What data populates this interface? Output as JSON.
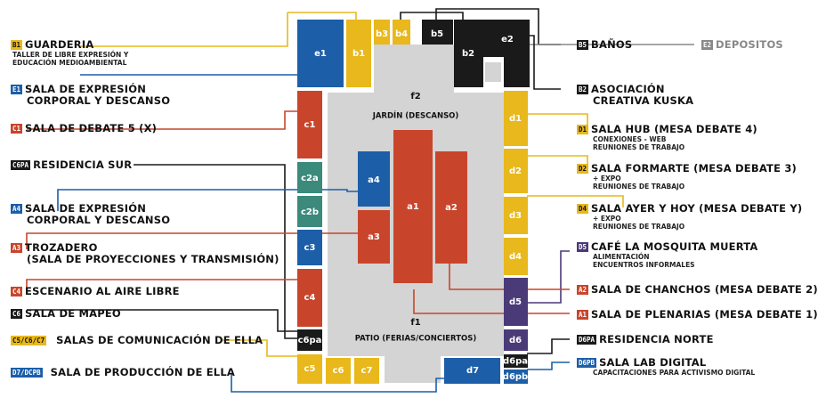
{
  "colors": {
    "yellow": "#e8b81c",
    "blue": "#1c5ea8",
    "red": "#c8452c",
    "teal": "#3b8a7c",
    "black": "#1a1a1a",
    "purple": "#4b3a78",
    "gray": "#d4d4d4",
    "muted": "#888888"
  },
  "zones": {
    "f2": {
      "code": "f2",
      "name": "JARDÍN (DESCANSO)"
    },
    "f1": {
      "code": "f1",
      "name": "PATIO (FERIAS/CONCIERTOS)"
    }
  },
  "rooms": {
    "e1": "e1",
    "b1": "b1",
    "b3": "b3",
    "b4": "b4",
    "b5": "b5",
    "e2": "e2",
    "b2": "b2",
    "c1": "c1",
    "c2a": "c2a",
    "c2b": "c2b",
    "c3": "c3",
    "c4": "c4",
    "c6pa": "c6pa",
    "c5": "c5",
    "c6": "c6",
    "c7": "c7",
    "a4": "a4",
    "a3": "a3",
    "a1": "a1",
    "a2": "a2",
    "d1": "d1",
    "d2": "d2",
    "d3": "d3",
    "d4": "d4",
    "d5": "d5",
    "d6": "d6",
    "d6pa": "d6pa",
    "d6pb": "d6pb",
    "d7": "d7"
  },
  "legend_left": [
    {
      "badge": "B1",
      "color": "yellow",
      "title": "GUARDERIA",
      "subs": [
        "TALLER DE LIBRE EXPRESIÓN Y",
        "EDUCACIÓN MEDIOAMBIENTAL"
      ]
    },
    {
      "badge": "E1",
      "color": "blue",
      "title": "SALA DE EXPRESIÓN",
      "title2": "CORPORAL Y DESCANSO",
      "subs": []
    },
    {
      "badge": "C1",
      "color": "red",
      "title": "SALA DE DEBATE 5 (X)",
      "subs": []
    },
    {
      "badge": "C6PA",
      "color": "black",
      "title": "RESIDENCIA SUR",
      "subs": []
    },
    {
      "badge": "A4",
      "color": "blue",
      "title": "SALA DE EXPRESIÓN",
      "title2": "CORPORAL Y DESCANSO",
      "subs": []
    },
    {
      "badge": "A3",
      "color": "red",
      "title": "TROZADERO",
      "title2": "(SALA DE PROYECCIONES Y TRANSMISIÓN)",
      "subs": []
    },
    {
      "badge": "C4",
      "color": "red",
      "title": "ESCENARIO AL AIRE LIBRE",
      "subs": []
    },
    {
      "badge": "C6",
      "color": "black",
      "title": "SALA DE MAPEO",
      "subs": []
    },
    {
      "badge": "C5/C6/C7",
      "color": "yellow",
      "title": "SALAS DE COMUNICACIÓN DE ELLA",
      "subs": []
    },
    {
      "badge": "D7/DCPB",
      "color": "blue",
      "title": "SALA DE PRODUCCIÓN DE ELLA",
      "subs": []
    }
  ],
  "legend_right": [
    {
      "badge": "B5",
      "color": "black",
      "title": "BAÑOS",
      "subs": []
    },
    {
      "badge": "E2",
      "color": "muted",
      "title": "DEPOSITOS",
      "subs": []
    },
    {
      "badge": "B2",
      "color": "black",
      "title": "ASOCIACIÓN",
      "title2": "CREATIVA KUSKA",
      "subs": []
    },
    {
      "badge": "D1",
      "color": "yellow",
      "title": "SALA HUB (MESA DEBATE 4)",
      "subs": [
        "CONEXIONES - WEB",
        "REUNIONES DE TRABAJO"
      ]
    },
    {
      "badge": "D2",
      "color": "yellow",
      "title": "SALA FORMARTE (MESA DEBATE 3)",
      "subs": [
        "+ EXPO",
        "REUNIONES DE TRABAJO"
      ]
    },
    {
      "badge": "D4",
      "color": "yellow",
      "title": "SALA AYER Y HOY (MESA DEBATE Y)",
      "subs": [
        "+ EXPO",
        "REUNIONES DE TRABAJO"
      ]
    },
    {
      "badge": "D5",
      "color": "purple",
      "title": "CAFÉ LA MOSQUITA MUERTA",
      "subs": [
        "ALIMENTACIÓN",
        "ENCUENTROS INFORMALES"
      ]
    },
    {
      "badge": "A2",
      "color": "red",
      "title": "SALA DE CHANCHOS (MESA DEBATE 2)",
      "subs": []
    },
    {
      "badge": "A1",
      "color": "red",
      "title": "SALA DE PLENARIAS (MESA DEBATE 1)",
      "subs": []
    },
    {
      "badge": "D6PA",
      "color": "black",
      "title": "RESIDENCIA NORTE",
      "subs": []
    },
    {
      "badge": "D6PB",
      "color": "blue",
      "title": "SALA LAB DIGITAL",
      "subs": [
        "CAPACITACIONES PARA ACTIVISMO DIGITAL"
      ]
    }
  ]
}
